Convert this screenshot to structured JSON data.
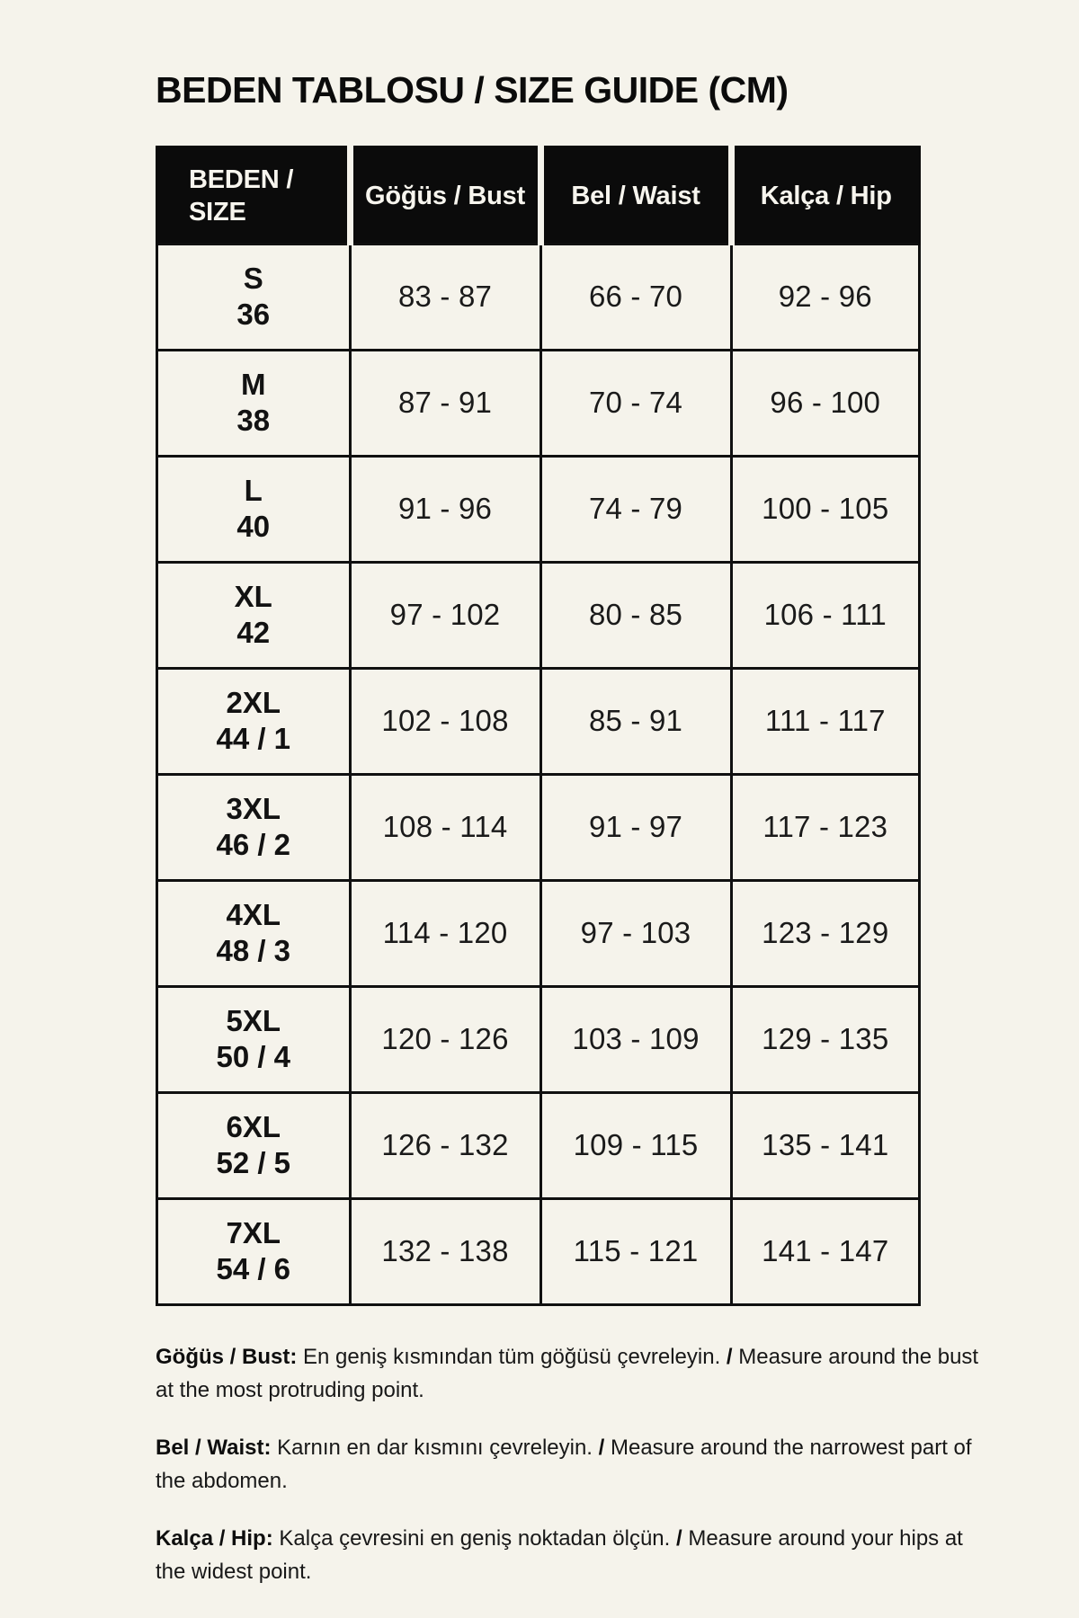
{
  "title": "BEDEN TABLOSU / SIZE GUIDE (CM)",
  "size_table": {
    "headers": [
      "BEDEN /\nSIZE",
      "Göğüs / Bust",
      "Bel / Waist",
      "Kalça / Hip"
    ],
    "rows": [
      {
        "size": "S\n36",
        "bust": "83 - 87",
        "waist": "66 - 70",
        "hip": "92 - 96"
      },
      {
        "size": "M\n38",
        "bust": "87 - 91",
        "waist": "70 - 74",
        "hip": "96 - 100"
      },
      {
        "size": "L\n40",
        "bust": "91 - 96",
        "waist": "74 - 79",
        "hip": "100 - 105"
      },
      {
        "size": "XL\n42",
        "bust": "97 - 102",
        "waist": "80 - 85",
        "hip": "106 - 111"
      },
      {
        "size": "2XL\n44 / 1",
        "bust": "102 - 108",
        "waist": "85 - 91",
        "hip": "111 - 117"
      },
      {
        "size": "3XL\n46 / 2",
        "bust": "108 - 114",
        "waist": "91 - 97",
        "hip": "117 - 123"
      },
      {
        "size": "4XL\n48 / 3",
        "bust": "114 - 120",
        "waist": "97 - 103",
        "hip": "123 - 129"
      },
      {
        "size": "5XL\n50 / 4",
        "bust": "120 - 126",
        "waist": "103 - 109",
        "hip": "129 - 135"
      },
      {
        "size": "6XL\n52 / 5",
        "bust": "126 - 132",
        "waist": "109 - 115",
        "hip": "135 - 141"
      },
      {
        "size": "7XL\n54 / 6",
        "bust": "132 - 138",
        "waist": "115 - 121",
        "hip": "141 - 147"
      }
    ]
  },
  "notes": [
    {
      "label": "Göğüs / Bust:",
      "tr": "En geniş kısmından tüm göğüsü çevreleyin.",
      "separator": "/",
      "en": "Measure around the bust at the most protruding point."
    },
    {
      "label": "Bel / Waist:",
      "tr": "Karnın en dar kısmını çevreleyin.",
      "separator": "/",
      "en": "Measure around the narrowest part of the abdomen."
    },
    {
      "label": "Kalça / Hip:",
      "tr": "Kalça çevresini en geniş noktadan ölçün.",
      "separator": "/",
      "en": "Measure around your hips at the widest point."
    }
  ],
  "colors": {
    "background": "#F5F3EB",
    "header_fill": "#0B0B0B",
    "header_text": "#F7F5EE",
    "border": "#101010"
  }
}
